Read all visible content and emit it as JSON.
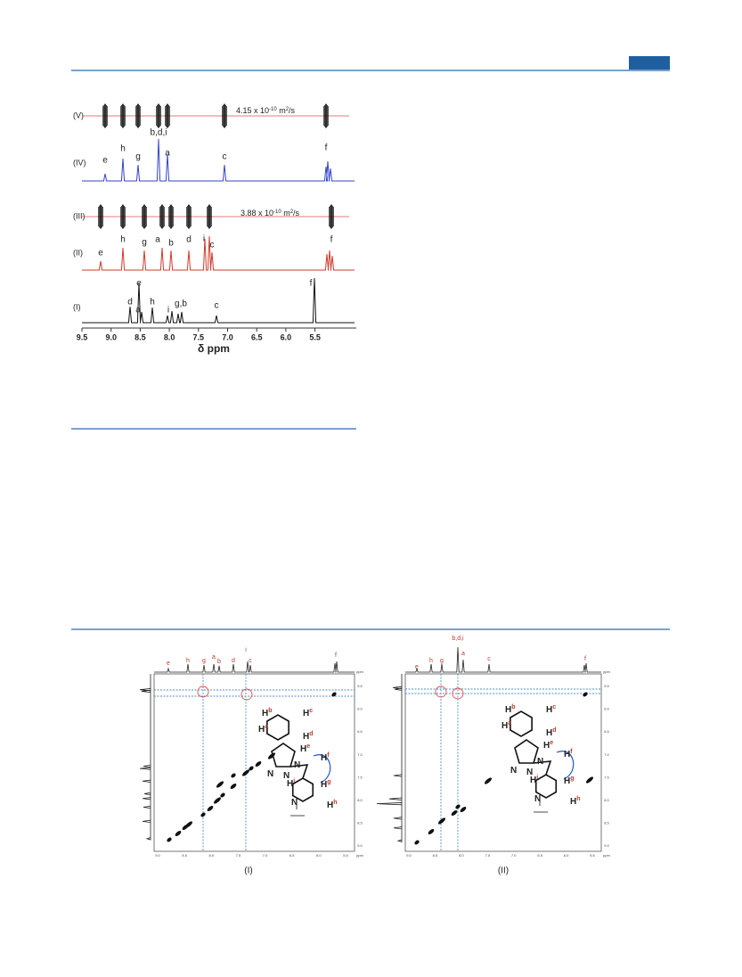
{
  "figure1": {
    "traces": [
      "(V)",
      "(IV)",
      "(III)",
      "(II)",
      "(I)"
    ],
    "diffusion": [
      {
        "mantissa": "4.15 x 10",
        "exponent": "-10",
        "unit": " m",
        "unit_exponent": "2",
        "per": "/s"
      },
      {
        "mantissa": "3.88 x 10",
        "exponent": "-10",
        "unit": " m",
        "unit_exponent": "2",
        "per": "/s"
      }
    ],
    "peaks_IV": [
      "e",
      "h",
      "g",
      "b,d,i",
      "a",
      "c",
      "f"
    ],
    "peaks_II": [
      "e",
      "h",
      "g",
      "a",
      "b",
      "d",
      "i",
      "c",
      "f"
    ],
    "peaks_I": [
      "d",
      "e",
      "a",
      "h",
      "i",
      "g,b",
      "c",
      "f"
    ],
    "x_ticks": [
      "9.5",
      "9.0",
      "8.5",
      "8.0",
      "7.5",
      "7.0",
      "6.5",
      "6.0",
      "5.5"
    ],
    "x_label": "δ ppm"
  },
  "figure2": {
    "panels": [
      {
        "label": "(I)",
        "peaks": [
          "e",
          "h",
          "g",
          "a",
          "b",
          "d",
          "c",
          "i",
          "f"
        ]
      },
      {
        "label": "(II)",
        "peaks": [
          "e",
          "h",
          "g",
          "b,d,i",
          "a",
          "c",
          "f"
        ]
      }
    ],
    "axis_ticks": [
      "9.0",
      "8.5",
      "8.0",
      "7.5",
      "7.0",
      "6.5",
      "6.0",
      "5.5"
    ],
    "axis_unit": "ppm",
    "molecule": [
      {
        "el": "H",
        "tag": "b"
      },
      {
        "el": "H",
        "tag": "c"
      },
      {
        "el": "H",
        "tag": "a"
      },
      {
        "el": "H",
        "tag": "d"
      },
      {
        "el": "H",
        "tag": "e"
      },
      {
        "el": "H",
        "tag": "f"
      },
      {
        "el": "H",
        "tag": "g"
      },
      {
        "el": "H",
        "tag": "i"
      },
      {
        "el": "H",
        "tag": "h"
      },
      {
        "el": "N"
      },
      {
        "el": "N"
      },
      {
        "el": "N"
      },
      {
        "el": "N"
      }
    ]
  }
}
